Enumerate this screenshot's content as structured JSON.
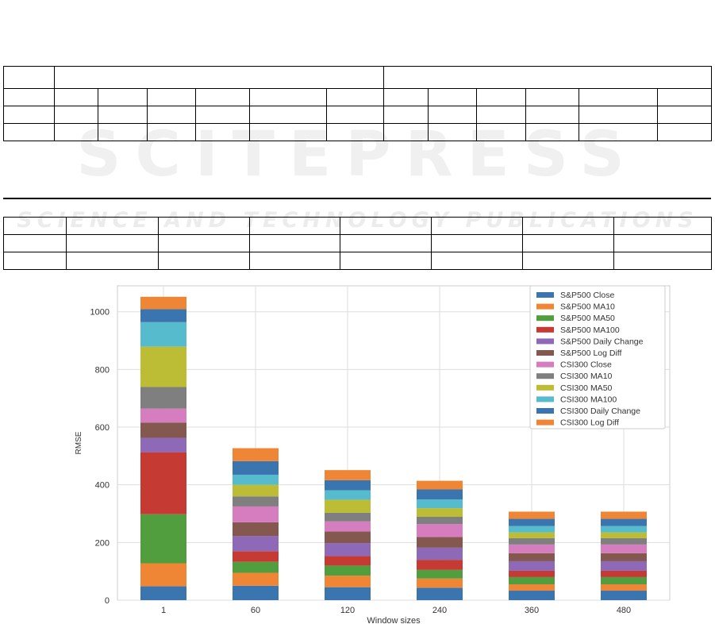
{
  "watermark": {
    "brand": "SCITEPRESS",
    "tagline": "SCIENCE AND TECHNOLOGY PUBLICATIONS"
  },
  "chart_data": {
    "type": "bar",
    "stacked": true,
    "categories": [
      "1",
      "60",
      "120",
      "240",
      "360",
      "480"
    ],
    "xlabel": "Window sizes",
    "ylabel": "RMSE",
    "ylim": [
      0,
      1090
    ],
    "yticks": [
      0,
      200,
      400,
      600,
      800,
      1000
    ],
    "grid": true,
    "legend_position": "top-right",
    "series": [
      {
        "name": "S&P500 Close",
        "color": "#3b75af",
        "values": [
          48,
          50,
          45,
          43,
          33,
          33
        ]
      },
      {
        "name": "S&P500 MA10",
        "color": "#ef8636",
        "values": [
          80,
          45,
          40,
          32,
          22,
          22
        ]
      },
      {
        "name": "S&P500 MA50",
        "color": "#519e3e",
        "values": [
          170,
          38,
          35,
          30,
          25,
          25
        ]
      },
      {
        "name": "S&P500 MA100",
        "color": "#c53a32",
        "values": [
          215,
          37,
          33,
          35,
          22,
          22
        ]
      },
      {
        "name": "S&P500 Daily Change",
        "color": "#8d69b8",
        "values": [
          50,
          52,
          45,
          42,
          33,
          33
        ]
      },
      {
        "name": "S&P500 Log Diff",
        "color": "#84584e",
        "values": [
          53,
          48,
          40,
          37,
          28,
          28
        ]
      },
      {
        "name": "CSI300 Close",
        "color": "#d57dbf",
        "values": [
          48,
          55,
          35,
          45,
          30,
          30
        ]
      },
      {
        "name": "CSI300 MA10",
        "color": "#7f7f7f",
        "values": [
          75,
          35,
          30,
          25,
          22,
          22
        ]
      },
      {
        "name": "CSI300 MA50",
        "color": "#bcbc35",
        "values": [
          140,
          40,
          45,
          30,
          20,
          20
        ]
      },
      {
        "name": "CSI300 MA100",
        "color": "#56bbcc",
        "values": [
          85,
          35,
          33,
          30,
          22,
          22
        ]
      },
      {
        "name": "CSI300 Daily Change",
        "color": "#3b75af",
        "values": [
          45,
          47,
          35,
          35,
          25,
          25
        ]
      },
      {
        "name": "CSI300 Log Diff",
        "color": "#ef8636",
        "values": [
          43,
          45,
          35,
          30,
          25,
          25
        ]
      }
    ]
  }
}
